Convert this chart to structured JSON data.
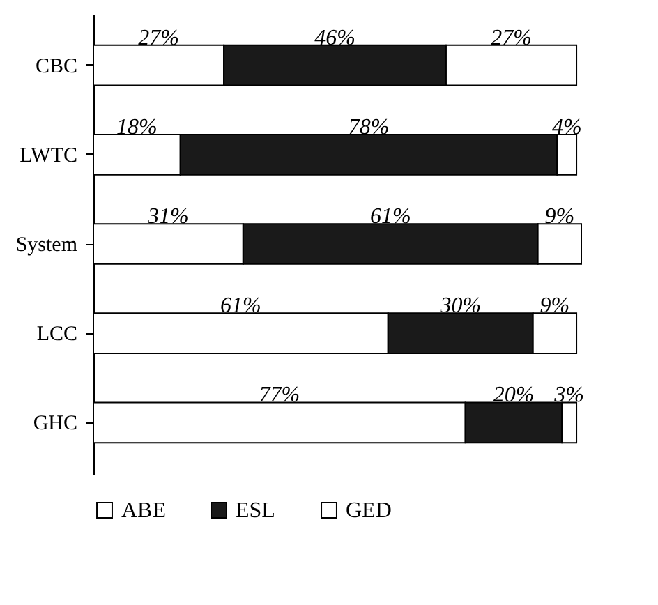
{
  "chart_data": {
    "type": "bar",
    "orientation": "horizontal",
    "stacked": true,
    "categories": [
      "CBC",
      "LWTC",
      "System",
      "LCC",
      "GHC"
    ],
    "series": [
      {
        "name": "ABE",
        "color": "#ffffff",
        "values": [
          27,
          18,
          31,
          61,
          77
        ],
        "value_labels": [
          "27%",
          "18%",
          "31%",
          "61%",
          "77%"
        ]
      },
      {
        "name": "ESL",
        "color": "#1a1a1a",
        "values": [
          46,
          78,
          61,
          30,
          20
        ],
        "value_labels": [
          "46%",
          "78%",
          "61%",
          "30%",
          "20%"
        ]
      },
      {
        "name": "GED",
        "color": "#ffffff",
        "values": [
          27,
          4,
          9,
          9,
          3
        ],
        "value_labels": [
          "27%",
          "4%",
          "9%",
          "9%",
          "3%"
        ]
      }
    ],
    "legend": "bottom",
    "tick_labels": "y",
    "grid": false
  }
}
